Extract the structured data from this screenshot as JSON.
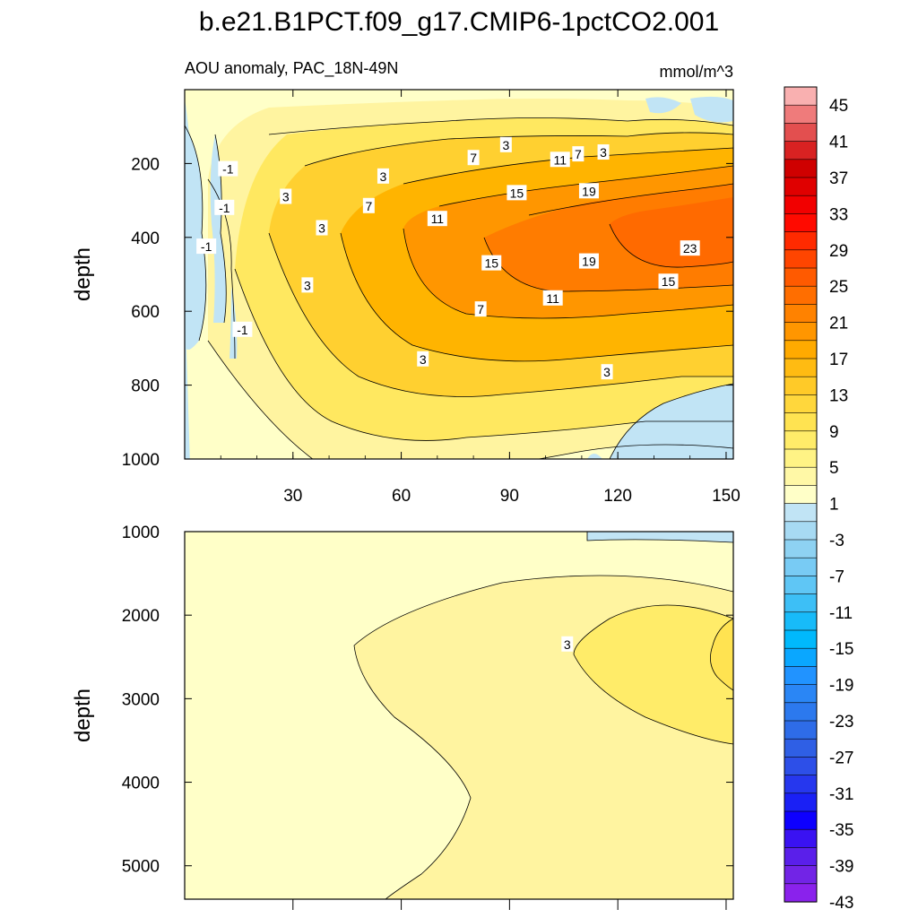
{
  "title": "b.e21.B1PCT.f09_g17.CMIP6-1pctCO2.001",
  "subtitle_left": "AOU anomaly, PAC_18N-49N",
  "subtitle_right": "mmol/m^3",
  "chart_data": [
    {
      "type": "contour",
      "panel": "upper",
      "xlabel": "",
      "ylabel": "depth",
      "xlim": [
        0,
        152
      ],
      "ylim": [
        1000,
        0
      ],
      "xticks": [
        30,
        60,
        90,
        120,
        150
      ],
      "yticks": [
        200,
        400,
        600,
        800,
        1000
      ],
      "contour_labels": [
        {
          "x": 12,
          "y": 215,
          "v": "-1"
        },
        {
          "x": 11,
          "y": 320,
          "v": "-1"
        },
        {
          "x": 6,
          "y": 425,
          "v": "-1"
        },
        {
          "x": 16,
          "y": 650,
          "v": "-1"
        },
        {
          "x": 28,
          "y": 290,
          "v": "3"
        },
        {
          "x": 38,
          "y": 375,
          "v": "3"
        },
        {
          "x": 34,
          "y": 530,
          "v": "3"
        },
        {
          "x": 55,
          "y": 235,
          "v": "3"
        },
        {
          "x": 89,
          "y": 150,
          "v": "3"
        },
        {
          "x": 116,
          "y": 170,
          "v": "3"
        },
        {
          "x": 66,
          "y": 730,
          "v": "3"
        },
        {
          "x": 117,
          "y": 765,
          "v": "3"
        },
        {
          "x": 51,
          "y": 315,
          "v": "7"
        },
        {
          "x": 80,
          "y": 185,
          "v": "7"
        },
        {
          "x": 109,
          "y": 175,
          "v": "7"
        },
        {
          "x": 82,
          "y": 595,
          "v": "7"
        },
        {
          "x": 70,
          "y": 350,
          "v": "11"
        },
        {
          "x": 104,
          "y": 190,
          "v": "11"
        },
        {
          "x": 102,
          "y": 565,
          "v": "11"
        },
        {
          "x": 92,
          "y": 280,
          "v": "15"
        },
        {
          "x": 85,
          "y": 470,
          "v": "15"
        },
        {
          "x": 134,
          "y": 520,
          "v": "15"
        },
        {
          "x": 112,
          "y": 275,
          "v": "19"
        },
        {
          "x": 112,
          "y": 465,
          "v": "19"
        },
        {
          "x": 140,
          "y": 430,
          "v": "23"
        }
      ]
    },
    {
      "type": "contour",
      "panel": "lower",
      "xlabel": "",
      "ylabel": "depth",
      "xlim": [
        0,
        152
      ],
      "ylim": [
        5400,
        1000
      ],
      "yticks": [
        1000,
        2000,
        3000,
        4000,
        5000
      ],
      "contour_labels": [
        {
          "x": 106,
          "y": 2350,
          "v": "3"
        }
      ]
    }
  ],
  "colorbar": {
    "labels": [
      "45",
      "41",
      "37",
      "33",
      "29",
      "25",
      "21",
      "17",
      "13",
      "9",
      "5",
      "1",
      "-3",
      "-7",
      "-11",
      "-15",
      "-19",
      "-23",
      "-27",
      "-31",
      "-35",
      "-39",
      "-43"
    ],
    "colors": [
      "#f9b0b0",
      "#ef7b7b",
      "#e34f4f",
      "#d82222",
      "#cf0000",
      "#e00000",
      "#f20000",
      "#ff0a00",
      "#ff2a00",
      "#ff4500",
      "#ff5a00",
      "#ff6e00",
      "#ff8200",
      "#ff9600",
      "#ffaa00",
      "#ffbb12",
      "#ffca28",
      "#ffd73c",
      "#ffe351",
      "#ffec69",
      "#fff385",
      "#fff8a6",
      "#ffffc8",
      "#c1e4f5",
      "#a7daf3",
      "#8ed2f2",
      "#78cbf4",
      "#5fc6f5",
      "#3dbff6",
      "#18bbf9",
      "#00b9fc",
      "#0aa7ff",
      "#2193ff",
      "#2a86f5",
      "#2c79ee",
      "#2e6ce8",
      "#2f5fe5",
      "#2d4fe8",
      "#2637ee",
      "#1a20f5",
      "#0d00ff",
      "#3a12f2",
      "#5a1fea",
      "#7224e6",
      "#8a22ec"
    ]
  }
}
